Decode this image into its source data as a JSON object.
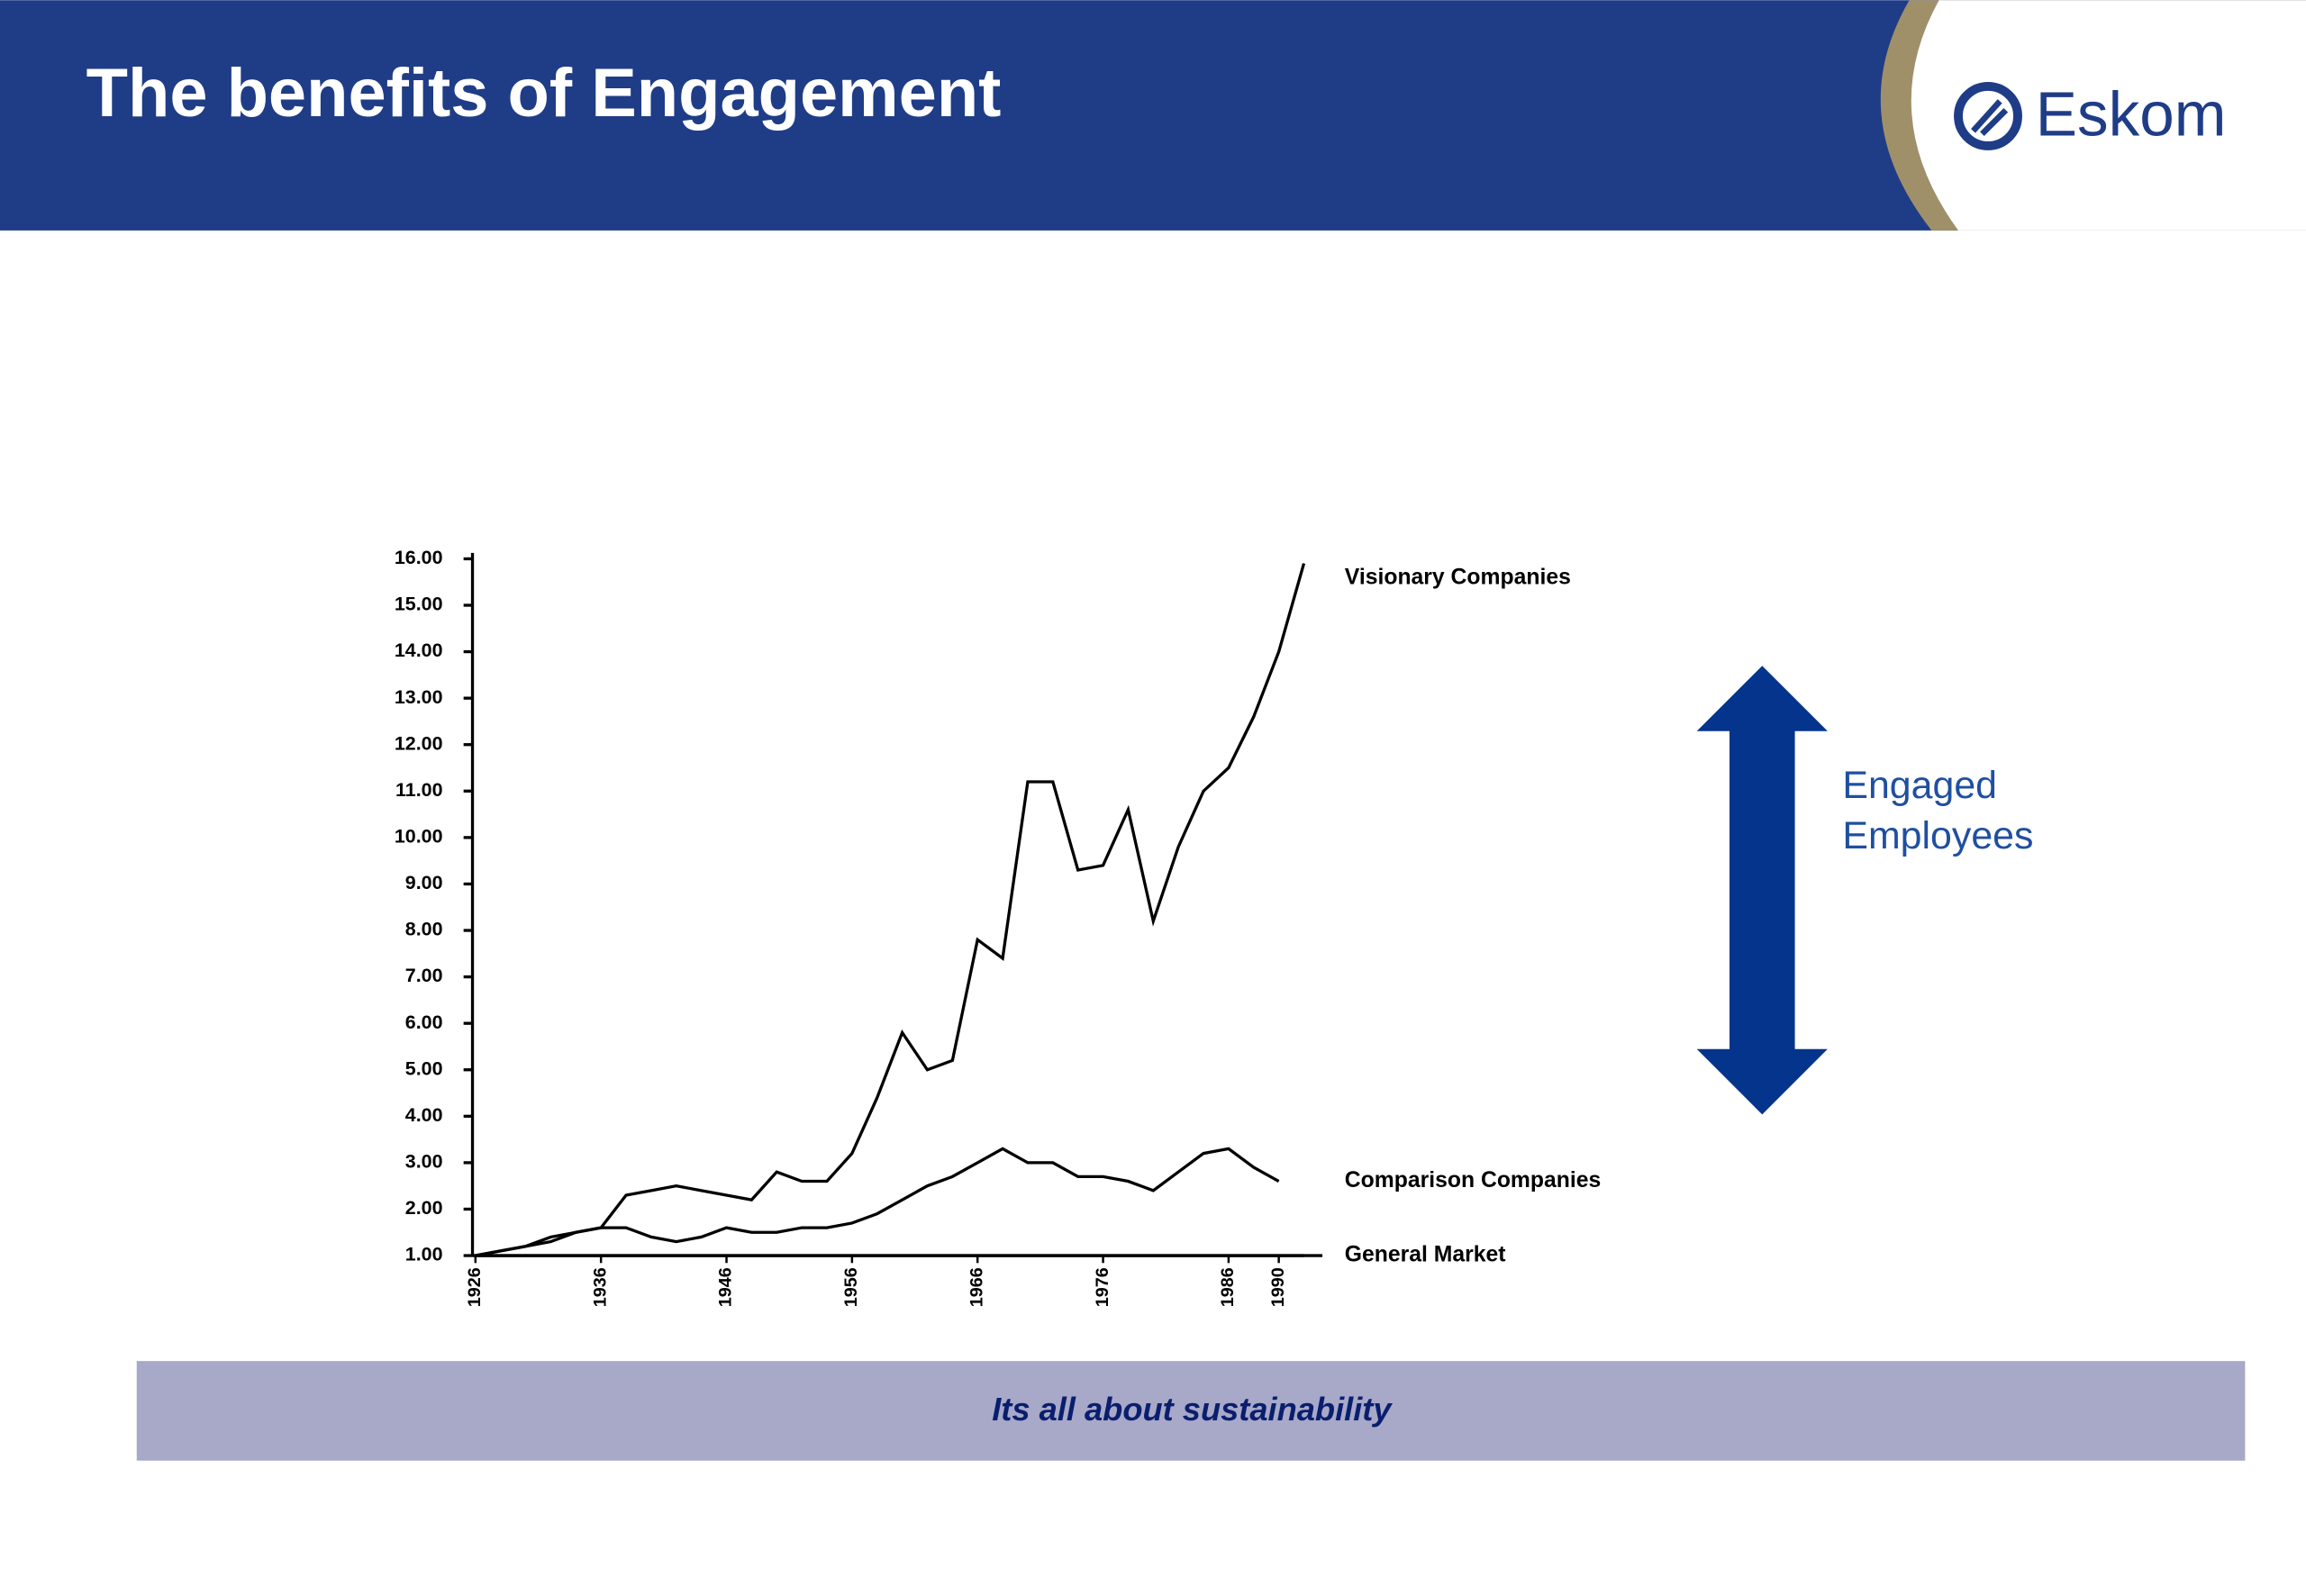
{
  "header": {
    "title": "The benefits of Engagement",
    "logo": "Eskom"
  },
  "footer": {
    "text": "Its all about sustainability"
  },
  "chart_data": {
    "type": "line",
    "annotation_lines": [
      "Engaged",
      "Employees"
    ],
    "x": [
      1926,
      1928,
      1930,
      1932,
      1934,
      1936,
      1938,
      1940,
      1942,
      1944,
      1946,
      1948,
      1950,
      1952,
      1954,
      1956,
      1958,
      1960,
      1962,
      1964,
      1966,
      1968,
      1970,
      1972,
      1974,
      1976,
      1978,
      1980,
      1982,
      1984,
      1986,
      1988,
      1990,
      1992
    ],
    "series": [
      {
        "name": "Visionary Companies",
        "color": "#000000",
        "values": [
          1.0,
          1.1,
          1.2,
          1.4,
          1.5,
          1.6,
          2.3,
          2.4,
          2.5,
          2.4,
          2.3,
          2.2,
          2.8,
          2.6,
          2.6,
          3.2,
          4.4,
          5.8,
          5.0,
          5.2,
          7.8,
          7.4,
          11.2,
          11.2,
          9.3,
          9.4,
          10.6,
          8.2,
          9.8,
          11.0,
          11.5,
          12.6,
          14.0,
          15.9
        ]
      },
      {
        "name": "Comparison Companies",
        "color": "#000000",
        "values": [
          1.0,
          1.1,
          1.2,
          1.3,
          1.5,
          1.6,
          1.6,
          1.4,
          1.3,
          1.4,
          1.6,
          1.5,
          1.5,
          1.6,
          1.6,
          1.7,
          1.9,
          2.2,
          2.5,
          2.7,
          3.0,
          3.3,
          3.0,
          3.0,
          2.7,
          2.7,
          2.6,
          2.4,
          2.8,
          3.2,
          3.3,
          2.9,
          2.6,
          null
        ]
      },
      {
        "name": "General Market",
        "color": "#000000",
        "values": [
          1.0,
          1.0,
          1.0,
          1.0,
          1.0,
          1.0,
          1.0,
          1.0,
          1.0,
          1.0,
          1.0,
          1.0,
          1.0,
          1.0,
          1.0,
          1.0,
          1.0,
          1.0,
          1.0,
          1.0,
          1.0,
          1.0,
          1.0,
          1.0,
          1.0,
          1.0,
          1.0,
          1.0,
          1.0,
          1.0,
          1.0,
          1.0,
          1.0,
          1.0
        ]
      }
    ],
    "xlim": [
      1926,
      1993
    ],
    "xticks": [
      1926,
      1936,
      1946,
      1956,
      1966,
      1976,
      1986,
      1990
    ],
    "ylim": [
      1,
      16
    ],
    "yticks": [
      {
        "value": 1,
        "label": "1.00"
      },
      {
        "value": 2,
        "label": "2.00"
      },
      {
        "value": 3,
        "label": "3.00"
      },
      {
        "value": 4,
        "label": "4.00"
      },
      {
        "value": 5,
        "label": "5.00"
      },
      {
        "value": 6,
        "label": "6.00"
      },
      {
        "value": 7,
        "label": "7.00"
      },
      {
        "value": 8,
        "label": "8.00"
      },
      {
        "value": 9,
        "label": "9.00"
      },
      {
        "value": 10,
        "label": "10.00"
      },
      {
        "value": 11,
        "label": "11.00"
      },
      {
        "value": 12,
        "label": "12.00"
      },
      {
        "value": 13,
        "label": "13.00"
      },
      {
        "value": 14,
        "label": "14.00"
      },
      {
        "value": 15,
        "label": "15.00"
      },
      {
        "value": 16,
        "label": "16.00"
      }
    ],
    "grid": false
  }
}
